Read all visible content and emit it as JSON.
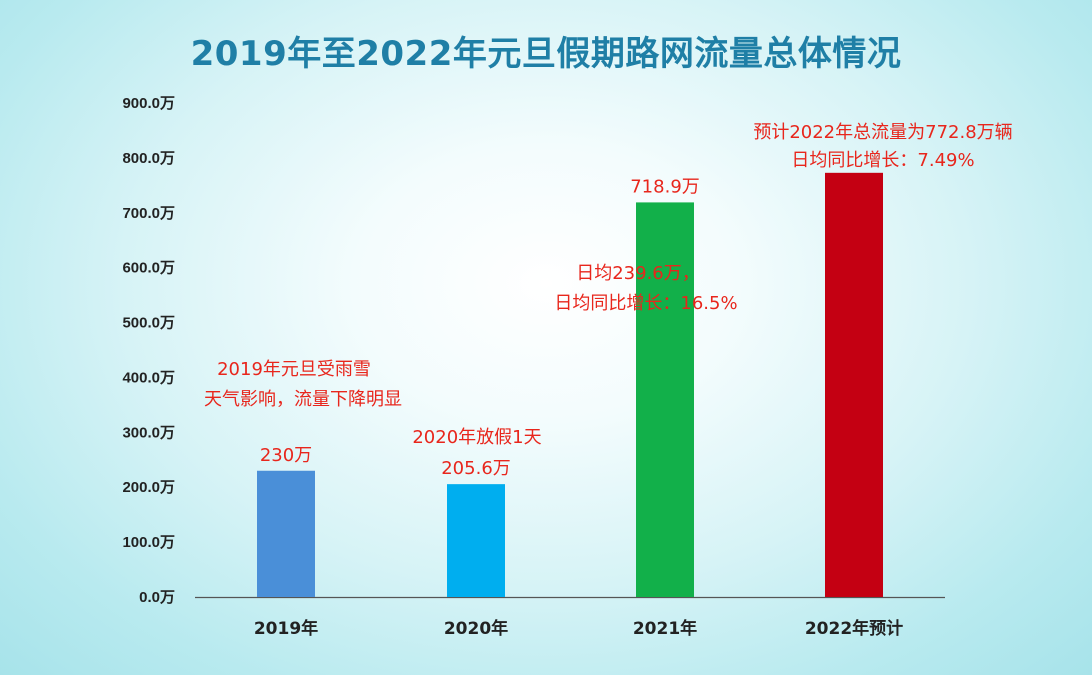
{
  "chart_data": {
    "type": "bar",
    "title": "2019年至2022年元旦假期路网流量总体情况",
    "xlabel": "",
    "ylabel": "",
    "categories": [
      "2019年",
      "2020年",
      "2021年",
      "2022年预计"
    ],
    "values": [
      230,
      205.6,
      718.9,
      772.8
    ],
    "value_labels": [
      "230万",
      "205.6万",
      "718.9万",
      ""
    ],
    "bar_colors": [
      "#4a8fd8",
      "#00aeef",
      "#12b04a",
      "#c40012"
    ],
    "ylim": [
      0,
      900
    ],
    "yticks": [
      0,
      100,
      200,
      300,
      400,
      500,
      600,
      700,
      800,
      900
    ],
    "ytick_labels": [
      "0.0万",
      "100.0万",
      "200.0万",
      "300.0万",
      "400.0万",
      "500.0万",
      "600.0万",
      "700.0万",
      "800.0万",
      "900.0万"
    ],
    "grid": false,
    "legend": "none",
    "annotations": {
      "a2019_line1": "2019年元旦受雨雪",
      "a2019_line2": "天气影响，流量下降明显",
      "a2020_line1": "2020年放假1天",
      "a2021_line1": "日均239.6万，",
      "a2021_line2": "日均同比增长：16.5%",
      "a2022_line1": "预计2022年总流量为772.8万辆",
      "a2022_line2": "日均同比增长：7.49%"
    }
  },
  "colors": {
    "title": "#1f7fa6",
    "annotation": "#e8261c",
    "axis": "#555555"
  }
}
